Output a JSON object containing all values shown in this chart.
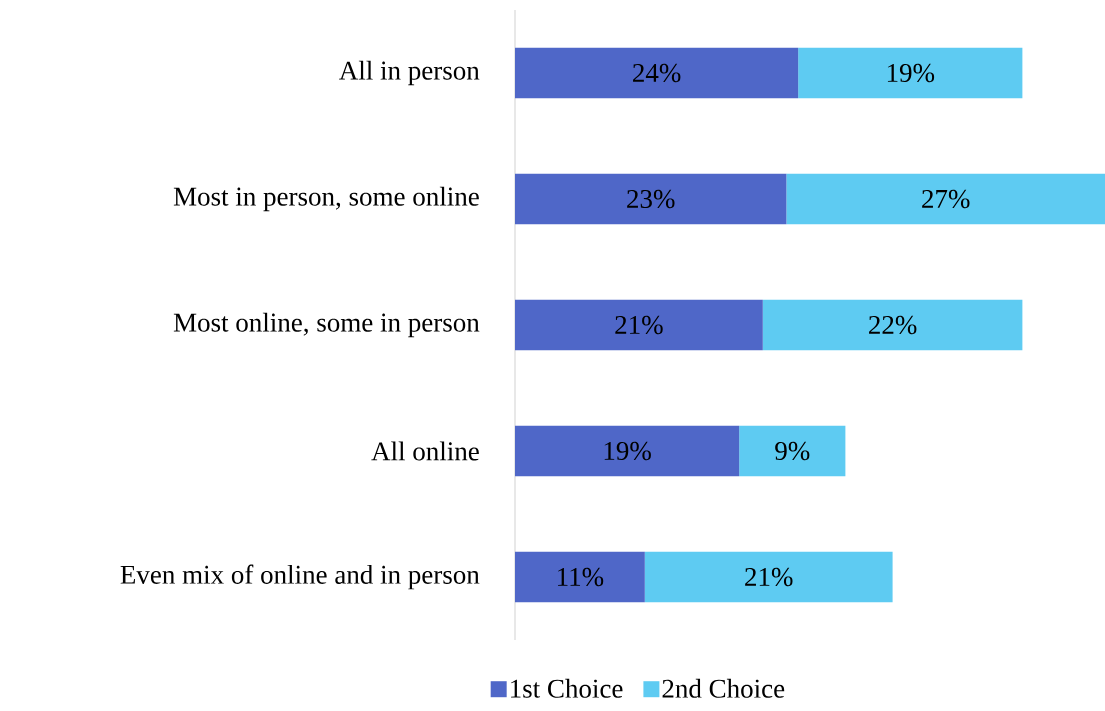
{
  "chart_data": {
    "type": "bar",
    "orientation": "horizontal",
    "stacked": true,
    "categories": [
      "All in person",
      "Most in person, some online",
      "Most online, some in person",
      "All online",
      "Even mix of online and in person"
    ],
    "series": [
      {
        "name": "1st Choice",
        "color": "#4f67c8",
        "values": [
          24,
          23,
          21,
          19,
          11
        ],
        "value_labels": [
          "24%",
          "23%",
          "21%",
          "19%",
          "11%"
        ]
      },
      {
        "name": "2nd Choice",
        "color": "#5ecbf2",
        "values": [
          19,
          27,
          22,
          9,
          21
        ],
        "value_labels": [
          "19%",
          "27%",
          "22%",
          "9%",
          "21%"
        ]
      }
    ],
    "legend": "bottom"
  }
}
